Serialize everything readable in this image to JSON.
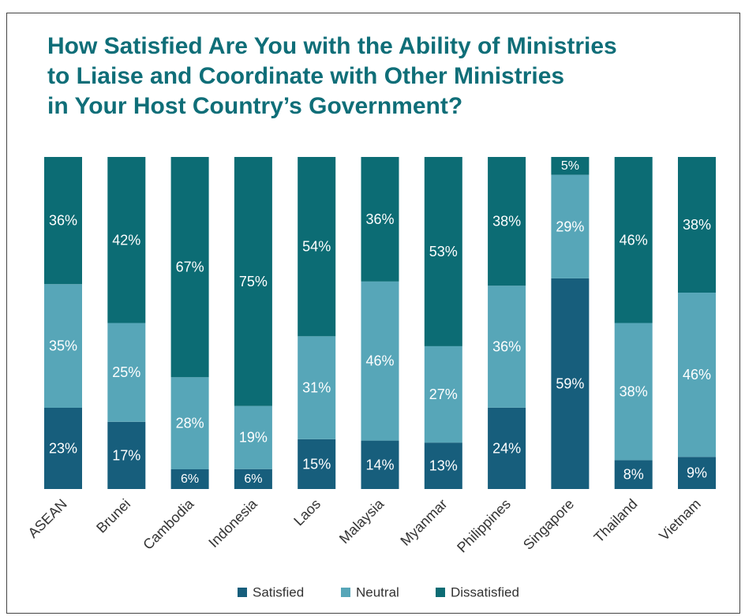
{
  "title_lines": [
    "How Satisfied Are You with the Ability of Ministries",
    "to Liaise and Coordinate with Other Ministries",
    "in Your Host Country’s Government?"
  ],
  "chart_data": {
    "type": "bar",
    "stacked": true,
    "percent_stacked": true,
    "title": "How Satisfied Are You with the Ability of Ministries to Liaise and Coordinate with Other Ministries in Your Host Country’s Government?",
    "xlabel": "",
    "ylabel": "",
    "categories": [
      "ASEAN",
      "Brunei",
      "Cambodia",
      "Indonesia",
      "Laos",
      "Malaysia",
      "Myanmar",
      "Philippines",
      "Singapore",
      "Thailand",
      "Vietnam"
    ],
    "series": [
      {
        "name": "Satisfied",
        "color": "#175e7c",
        "values": [
          23,
          17,
          6,
          6,
          15,
          14,
          13,
          24,
          59,
          8,
          9
        ]
      },
      {
        "name": "Neutral",
        "color": "#57a6b8",
        "values": [
          35,
          25,
          28,
          19,
          31,
          46,
          27,
          36,
          29,
          38,
          46
        ]
      },
      {
        "name": "Dissatisfied",
        "color": "#0c6c74",
        "values": [
          36,
          42,
          67,
          75,
          54,
          36,
          53,
          38,
          5,
          46,
          38
        ]
      }
    ],
    "value_suffix": "%",
    "legend_position": "bottom",
    "grid": false
  }
}
